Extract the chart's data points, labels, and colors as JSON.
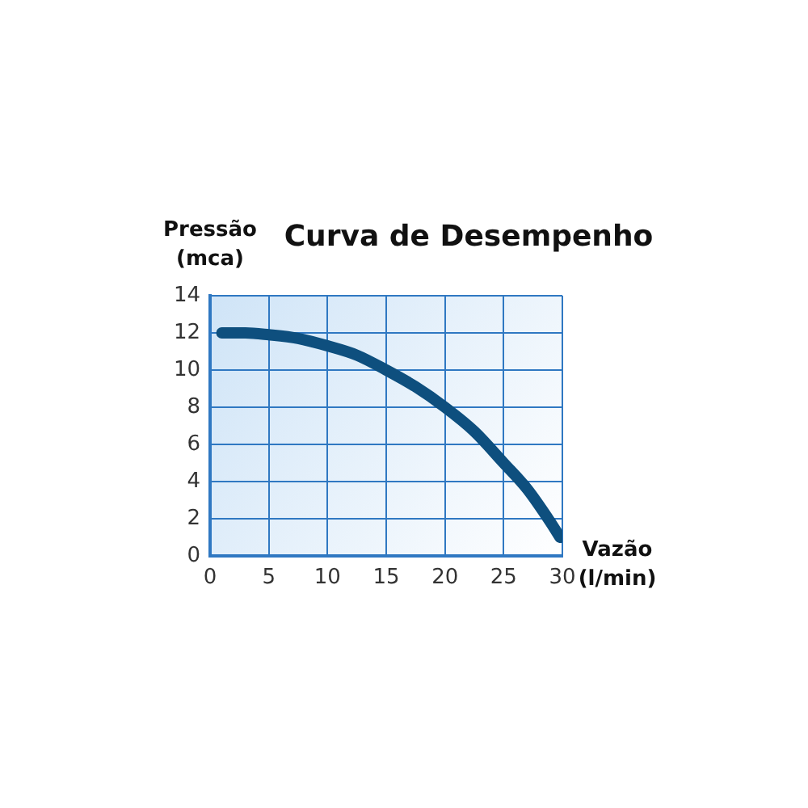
{
  "chart_data": {
    "type": "line",
    "title": "Curva de Desempenho",
    "xlabel": "Vazão (l/min)",
    "ylabel": "Pressão (mca)",
    "x": [
      1,
      3,
      5,
      7.5,
      10,
      12.5,
      15,
      17.5,
      20,
      22.5,
      25,
      27,
      29,
      29.8
    ],
    "series": [
      {
        "color": "#0e4f7e",
        "values": [
          12,
          12,
          11.9,
          11.7,
          11.3,
          10.8,
          10,
          9.1,
          8,
          6.7,
          5,
          3.6,
          1.8,
          1
        ]
      }
    ],
    "xlim": [
      0,
      30
    ],
    "xticks": [
      0,
      5,
      10,
      15,
      20,
      25,
      30
    ],
    "ylim": [
      0,
      14
    ],
    "yticks": [
      0,
      2,
      4,
      6,
      8,
      10,
      12,
      14
    ],
    "grid": true,
    "legend": false,
    "marker": "none",
    "line_style": "solid"
  }
}
